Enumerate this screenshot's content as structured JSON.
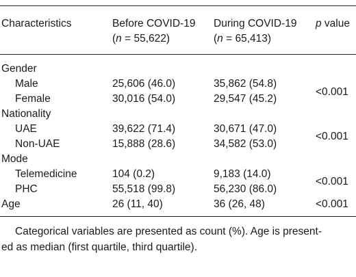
{
  "table": {
    "headers": {
      "characteristics": "Characteristics",
      "before_line1": "Before COVID-19",
      "before_n_pre": "(",
      "before_n_var": "n",
      "before_n_post": " = 55,622)",
      "during_line1": "During COVID-19",
      "during_n_pre": "(",
      "during_n_var": "n",
      "during_n_post": " = 65,413)",
      "p_var": "p",
      "p_post": " value"
    },
    "sections": [
      {
        "label": "Gender",
        "rows": [
          {
            "label": "Male",
            "before": "25,606 (46.0)",
            "during": "35,862 (54.8)"
          },
          {
            "label": "Female",
            "before": "30,016 (54.0)",
            "during": "29,547 (45.2)"
          }
        ],
        "p": "<0.001"
      },
      {
        "label": "Nationality",
        "rows": [
          {
            "label": "UAE",
            "before": "39,622 (71.4)",
            "during": "30,671 (47.0)"
          },
          {
            "label": "Non-UAE",
            "before": "15,888 (28.6)",
            "during": "34,582 (53.0)"
          }
        ],
        "p": "<0.001"
      },
      {
        "label": "Mode",
        "rows": [
          {
            "label": "Telemedicine",
            "before": "104 (0.2)",
            "during": "9,183 (14.0)"
          },
          {
            "label": "PHC",
            "before": "55,518 (99.8)",
            "during": "56,230 (86.0)"
          }
        ],
        "p": "<0.001"
      }
    ],
    "age": {
      "label": "Age",
      "before": "26 (11, 40)",
      "during": "36 (26, 48)",
      "p": "<0.001"
    }
  },
  "footnote": {
    "line1": "Categorical variables are presented as count (%). Age is present-",
    "line2": "ed as median (first quartile, third quartile)."
  }
}
